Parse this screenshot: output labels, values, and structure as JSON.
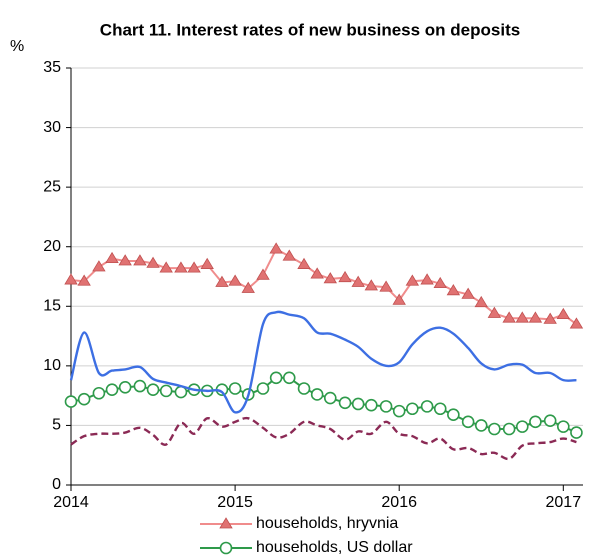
{
  "chart_data": {
    "type": "line",
    "title": "Chart 11. Interest rates of new business on deposits",
    "y_label": "%",
    "x": [
      2014,
      2014.08,
      2014.17,
      2014.25,
      2014.33,
      2014.42,
      2014.5,
      2014.58,
      2014.67,
      2014.75,
      2014.83,
      2014.92,
      2015,
      2015.08,
      2015.17,
      2015.25,
      2015.33,
      2015.42,
      2015.5,
      2015.58,
      2015.67,
      2015.75,
      2015.83,
      2015.92,
      2016,
      2016.08,
      2016.17,
      2016.25,
      2016.33,
      2016.42,
      2016.5,
      2016.58,
      2016.67,
      2016.75,
      2016.83,
      2016.92,
      2017,
      2017.08
    ],
    "xlim": [
      2014,
      2017.12
    ],
    "xticks": [
      2014,
      2015,
      2016,
      2017
    ],
    "ylim": [
      0,
      35
    ],
    "yticks": [
      0,
      5,
      10,
      15,
      20,
      25,
      30,
      35
    ],
    "grid": true,
    "series": [
      {
        "name": "households, hryvnia",
        "color": "#f08c8c",
        "marker": "triangle",
        "marker_color": "#e07272",
        "values": [
          17.2,
          17.1,
          18.3,
          19.0,
          18.8,
          18.8,
          18.6,
          18.2,
          18.2,
          18.2,
          18.5,
          17.0,
          17.1,
          16.5,
          17.6,
          19.8,
          19.2,
          18.5,
          17.7,
          17.3,
          17.4,
          17.0,
          16.7,
          16.6,
          15.5,
          17.1,
          17.2,
          16.9,
          16.3,
          16.0,
          15.3,
          14.4,
          14.0,
          14.0,
          14.0,
          13.9,
          14.3,
          13.5
        ]
      },
      {
        "name": "households, US dollar",
        "color": "#2e9a4a",
        "marker": "circle",
        "marker_color": "#2e9a4a",
        "values": [
          7.0,
          7.2,
          7.7,
          8.0,
          8.2,
          8.3,
          8.0,
          7.9,
          7.8,
          8.0,
          7.9,
          8.0,
          8.1,
          7.6,
          8.1,
          9.0,
          9.0,
          8.1,
          7.6,
          7.3,
          6.9,
          6.8,
          6.7,
          6.6,
          6.2,
          6.4,
          6.6,
          6.4,
          5.9,
          5.3,
          5.0,
          4.7,
          4.7,
          4.9,
          5.3,
          5.4,
          4.9,
          4.4
        ]
      },
      {
        "color": "#3d6fe3",
        "smooth": true,
        "values": [
          8.8,
          12.8,
          9.4,
          9.6,
          9.7,
          9.9,
          8.9,
          8.6,
          8.3,
          8.0,
          7.9,
          7.8,
          6.1,
          7.5,
          13.5,
          14.5,
          14.3,
          14.0,
          12.8,
          12.7,
          12.2,
          11.6,
          10.6,
          10.0,
          10.3,
          11.8,
          12.9,
          13.2,
          12.7,
          11.5,
          10.2,
          9.7,
          10.1,
          10.1,
          9.4,
          9.4,
          8.8,
          8.8
        ]
      },
      {
        "color": "#8b2a55",
        "smooth": true,
        "dashed": true,
        "values": [
          3.4,
          4.1,
          4.3,
          4.3,
          4.4,
          4.8,
          4.2,
          3.4,
          5.2,
          4.3,
          5.6,
          4.9,
          5.3,
          5.6,
          4.8,
          4.0,
          4.3,
          5.3,
          5.0,
          4.7,
          3.8,
          4.5,
          4.3,
          5.3,
          4.3,
          4.1,
          3.5,
          3.9,
          3.0,
          3.1,
          2.6,
          2.7,
          2.2,
          3.3,
          3.5,
          3.6,
          3.9,
          3.6
        ]
      }
    ]
  }
}
